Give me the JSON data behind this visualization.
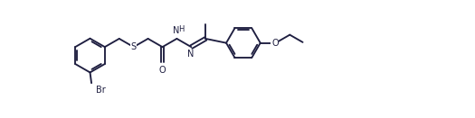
{
  "bg_color": "#ffffff",
  "line_color": "#1e1e40",
  "line_width": 1.35,
  "font_size": 7.0,
  "fig_width": 5.25,
  "fig_height": 1.31,
  "dpi": 100,
  "xlim": [
    -0.3,
    10.8
  ],
  "ylim": [
    -0.5,
    2.8
  ]
}
